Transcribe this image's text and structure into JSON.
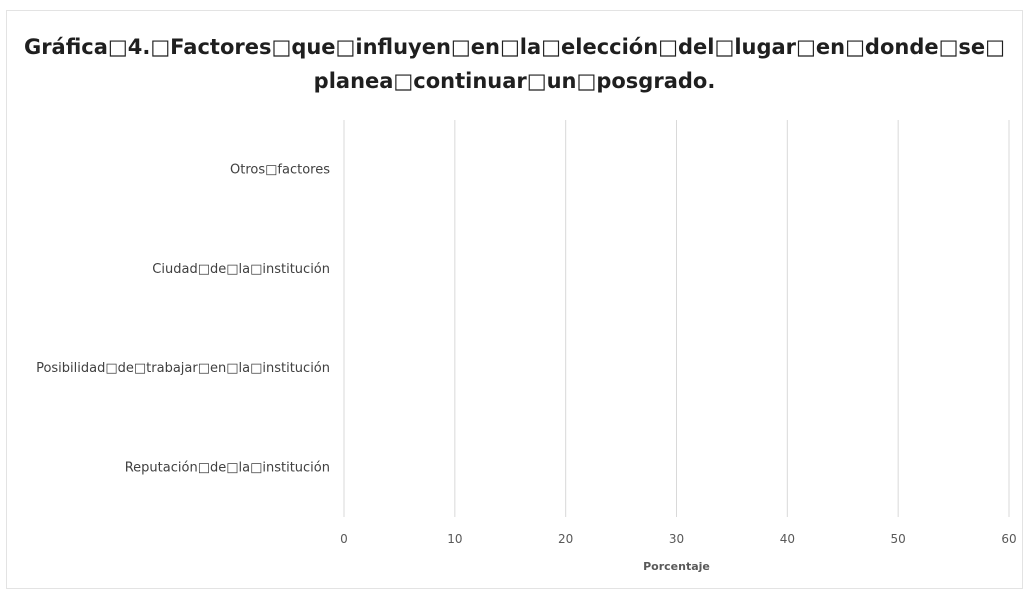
{
  "chart_data": {
    "type": "bar",
    "orientation": "horizontal",
    "title_lines": [
      "Gráfica□4.□Factores□que□influyen□en□la□elección□del□lugar□en□donde□se□",
      "planea□continuar□un□posgrado."
    ],
    "categories": [
      "Otros□factores",
      "Ciudad□de□la□institución",
      "Posibilidad□de□trabajar□en□la□institución",
      "Reputación□de□la□institución"
    ],
    "values": [
      null,
      null,
      null,
      null
    ],
    "xlabel": "Porcentaje",
    "ylabel": "",
    "xlim": [
      0,
      60
    ],
    "xticks": [
      "0",
      "10",
      "20",
      "30",
      "40",
      "50",
      "60"
    ],
    "grid": true,
    "legend": "none",
    "colors": {
      "grid": "#d9d9d9",
      "text": "#404040",
      "tick": "#595959",
      "bar": "#4472c4"
    }
  }
}
